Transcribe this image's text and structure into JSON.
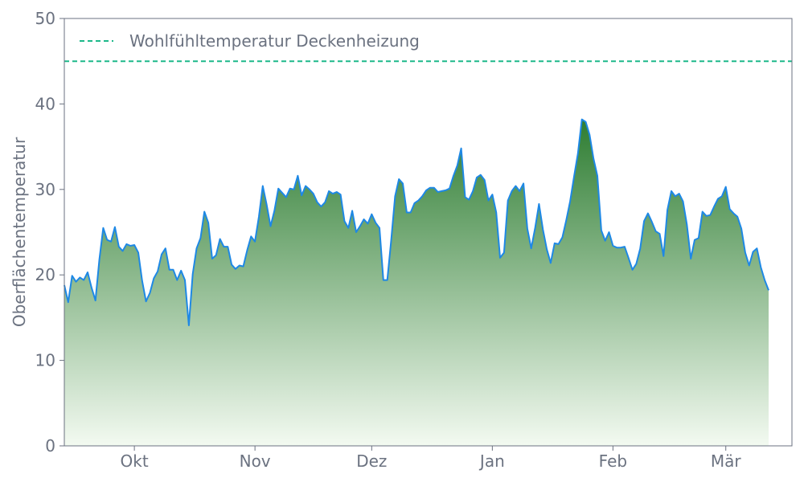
{
  "chart_data": {
    "type": "area",
    "title": "",
    "xlabel": "",
    "ylabel": "Oberflächentemperatur",
    "ylim": [
      0,
      50
    ],
    "yticks": [
      0,
      10,
      20,
      30,
      40,
      50
    ],
    "x_range": [
      "2023-09-13",
      "2024-03-18"
    ],
    "x_ticks": [
      {
        "date": "2023-10-01",
        "label": "Okt"
      },
      {
        "date": "2023-11-01",
        "label": "Nov"
      },
      {
        "date": "2023-12-01",
        "label": "Dez"
      },
      {
        "date": "2024-01-01",
        "label": "Jan"
      },
      {
        "date": "2024-02-01",
        "label": "Feb"
      },
      {
        "date": "2024-03-01",
        "label": "Mär"
      }
    ],
    "grid": false,
    "legend": {
      "position": "top-left"
    },
    "reference_line": {
      "name": "Wohlfühltemperatur Deckenheizung",
      "value": 45,
      "color": "#1db88a",
      "style": "dashed"
    },
    "series": [
      {
        "name": "",
        "color": "#1e88e5",
        "fill_top": "#2e7d32",
        "fill_bottom": "#f3faf1",
        "points": [
          [
            "2023-09-13",
            18.8
          ],
          [
            "2023-09-14",
            16.8
          ],
          [
            "2023-09-15",
            19.9
          ],
          [
            "2023-09-16",
            19.2
          ],
          [
            "2023-09-17",
            19.7
          ],
          [
            "2023-09-18",
            19.4
          ],
          [
            "2023-09-19",
            20.3
          ],
          [
            "2023-09-20",
            18.5
          ],
          [
            "2023-09-21",
            17.0
          ],
          [
            "2023-09-22",
            21.8
          ],
          [
            "2023-09-23",
            25.5
          ],
          [
            "2023-09-24",
            24.1
          ],
          [
            "2023-09-25",
            23.9
          ],
          [
            "2023-09-26",
            25.6
          ],
          [
            "2023-09-27",
            23.3
          ],
          [
            "2023-09-28",
            22.8
          ],
          [
            "2023-09-29",
            23.6
          ],
          [
            "2023-09-30",
            23.4
          ],
          [
            "2023-10-01",
            23.5
          ],
          [
            "2023-10-02",
            22.6
          ],
          [
            "2023-10-03",
            19.3
          ],
          [
            "2023-10-04",
            16.9
          ],
          [
            "2023-10-05",
            17.9
          ],
          [
            "2023-10-06",
            19.6
          ],
          [
            "2023-10-07",
            20.4
          ],
          [
            "2023-10-08",
            22.4
          ],
          [
            "2023-10-09",
            23.1
          ],
          [
            "2023-10-10",
            20.6
          ],
          [
            "2023-10-11",
            20.6
          ],
          [
            "2023-10-12",
            19.4
          ],
          [
            "2023-10-13",
            20.5
          ],
          [
            "2023-10-14",
            19.4
          ],
          [
            "2023-10-15",
            14.1
          ],
          [
            "2023-10-16",
            20.1
          ],
          [
            "2023-10-17",
            23.1
          ],
          [
            "2023-10-18",
            24.3
          ],
          [
            "2023-10-19",
            27.4
          ],
          [
            "2023-10-20",
            26.1
          ],
          [
            "2023-10-21",
            21.9
          ],
          [
            "2023-10-22",
            22.3
          ],
          [
            "2023-10-23",
            24.2
          ],
          [
            "2023-10-24",
            23.3
          ],
          [
            "2023-10-25",
            23.3
          ],
          [
            "2023-10-26",
            21.2
          ],
          [
            "2023-10-27",
            20.7
          ],
          [
            "2023-10-28",
            21.1
          ],
          [
            "2023-10-29",
            21.0
          ],
          [
            "2023-10-30",
            22.9
          ],
          [
            "2023-10-31",
            24.5
          ],
          [
            "2023-11-01",
            23.9
          ],
          [
            "2023-11-02",
            26.8
          ],
          [
            "2023-11-03",
            30.4
          ],
          [
            "2023-11-04",
            28.2
          ],
          [
            "2023-11-05",
            25.7
          ],
          [
            "2023-11-06",
            27.5
          ],
          [
            "2023-11-07",
            30.1
          ],
          [
            "2023-11-08",
            29.6
          ],
          [
            "2023-11-09",
            29.1
          ],
          [
            "2023-11-10",
            30.1
          ],
          [
            "2023-11-11",
            30.0
          ],
          [
            "2023-11-12",
            31.6
          ],
          [
            "2023-11-13",
            29.3
          ],
          [
            "2023-11-14",
            30.4
          ],
          [
            "2023-11-15",
            30.0
          ],
          [
            "2023-11-16",
            29.5
          ],
          [
            "2023-11-17",
            28.5
          ],
          [
            "2023-11-18",
            28.0
          ],
          [
            "2023-11-19",
            28.5
          ],
          [
            "2023-11-20",
            29.8
          ],
          [
            "2023-11-21",
            29.5
          ],
          [
            "2023-11-22",
            29.7
          ],
          [
            "2023-11-23",
            29.4
          ],
          [
            "2023-11-24",
            26.3
          ],
          [
            "2023-11-25",
            25.5
          ],
          [
            "2023-11-26",
            27.5
          ],
          [
            "2023-11-27",
            25.0
          ],
          [
            "2023-11-28",
            25.7
          ],
          [
            "2023-11-29",
            26.5
          ],
          [
            "2023-11-30",
            26.0
          ],
          [
            "2023-12-01",
            27.1
          ],
          [
            "2023-12-02",
            26.1
          ],
          [
            "2023-12-03",
            25.5
          ],
          [
            "2023-12-04",
            19.4
          ],
          [
            "2023-12-05",
            19.4
          ],
          [
            "2023-12-06",
            24.0
          ],
          [
            "2023-12-07",
            29.2
          ],
          [
            "2023-12-08",
            31.2
          ],
          [
            "2023-12-09",
            30.7
          ],
          [
            "2023-12-10",
            27.3
          ],
          [
            "2023-12-11",
            27.3
          ],
          [
            "2023-12-12",
            28.4
          ],
          [
            "2023-12-13",
            28.7
          ],
          [
            "2023-12-14",
            29.2
          ],
          [
            "2023-12-15",
            29.9
          ],
          [
            "2023-12-16",
            30.2
          ],
          [
            "2023-12-17",
            30.2
          ],
          [
            "2023-12-18",
            29.7
          ],
          [
            "2023-12-19",
            29.8
          ],
          [
            "2023-12-20",
            29.9
          ],
          [
            "2023-12-21",
            30.1
          ],
          [
            "2023-12-22",
            31.6
          ],
          [
            "2023-12-23",
            32.8
          ],
          [
            "2023-12-24",
            34.8
          ],
          [
            "2023-12-25",
            29.1
          ],
          [
            "2023-12-26",
            28.8
          ],
          [
            "2023-12-27",
            29.8
          ],
          [
            "2023-12-28",
            31.4
          ],
          [
            "2023-12-29",
            31.7
          ],
          [
            "2023-12-30",
            31.1
          ],
          [
            "2023-12-31",
            28.7
          ],
          [
            "2024-01-01",
            29.4
          ],
          [
            "2024-01-02",
            27.3
          ],
          [
            "2024-01-03",
            22.0
          ],
          [
            "2024-01-04",
            22.6
          ],
          [
            "2024-01-05",
            28.7
          ],
          [
            "2024-01-06",
            29.8
          ],
          [
            "2024-01-07",
            30.4
          ],
          [
            "2024-01-08",
            29.8
          ],
          [
            "2024-01-09",
            30.7
          ],
          [
            "2024-01-10",
            25.4
          ],
          [
            "2024-01-11",
            23.1
          ],
          [
            "2024-01-12",
            25.5
          ],
          [
            "2024-01-13",
            28.3
          ],
          [
            "2024-01-14",
            25.3
          ],
          [
            "2024-01-15",
            23.0
          ],
          [
            "2024-01-16",
            21.4
          ],
          [
            "2024-01-17",
            23.7
          ],
          [
            "2024-01-18",
            23.6
          ],
          [
            "2024-01-19",
            24.4
          ],
          [
            "2024-01-20",
            26.4
          ],
          [
            "2024-01-21",
            28.6
          ],
          [
            "2024-01-22",
            31.5
          ],
          [
            "2024-01-23",
            34.2
          ],
          [
            "2024-01-24",
            38.2
          ],
          [
            "2024-01-25",
            37.9
          ],
          [
            "2024-01-26",
            36.4
          ],
          [
            "2024-01-27",
            33.6
          ],
          [
            "2024-01-28",
            31.6
          ],
          [
            "2024-01-29",
            25.2
          ],
          [
            "2024-01-30",
            24.0
          ],
          [
            "2024-01-31",
            25.0
          ],
          [
            "2024-02-01",
            23.4
          ],
          [
            "2024-02-02",
            23.2
          ],
          [
            "2024-02-03",
            23.2
          ],
          [
            "2024-02-04",
            23.3
          ],
          [
            "2024-02-05",
            22.0
          ],
          [
            "2024-02-06",
            20.6
          ],
          [
            "2024-02-07",
            21.3
          ],
          [
            "2024-02-08",
            23.1
          ],
          [
            "2024-02-09",
            26.3
          ],
          [
            "2024-02-10",
            27.2
          ],
          [
            "2024-02-11",
            26.2
          ],
          [
            "2024-02-12",
            25.1
          ],
          [
            "2024-02-13",
            24.8
          ],
          [
            "2024-02-14",
            22.2
          ],
          [
            "2024-02-15",
            27.6
          ],
          [
            "2024-02-16",
            29.8
          ],
          [
            "2024-02-17",
            29.2
          ],
          [
            "2024-02-18",
            29.5
          ],
          [
            "2024-02-19",
            28.6
          ],
          [
            "2024-02-20",
            25.9
          ],
          [
            "2024-02-21",
            21.9
          ],
          [
            "2024-02-22",
            24.1
          ],
          [
            "2024-02-23",
            24.3
          ],
          [
            "2024-02-24",
            27.4
          ],
          [
            "2024-02-25",
            26.9
          ],
          [
            "2024-02-26",
            27.0
          ],
          [
            "2024-02-27",
            28.0
          ],
          [
            "2024-02-28",
            28.9
          ],
          [
            "2024-02-29",
            29.2
          ],
          [
            "2024-03-01",
            30.3
          ],
          [
            "2024-03-02",
            27.7
          ],
          [
            "2024-03-03",
            27.2
          ],
          [
            "2024-03-04",
            26.8
          ],
          [
            "2024-03-05",
            25.4
          ],
          [
            "2024-03-06",
            22.6
          ],
          [
            "2024-03-07",
            21.1
          ],
          [
            "2024-03-08",
            22.7
          ],
          [
            "2024-03-09",
            23.1
          ],
          [
            "2024-03-10",
            20.9
          ],
          [
            "2024-03-11",
            19.4
          ],
          [
            "2024-03-12",
            18.2
          ]
        ]
      }
    ]
  }
}
